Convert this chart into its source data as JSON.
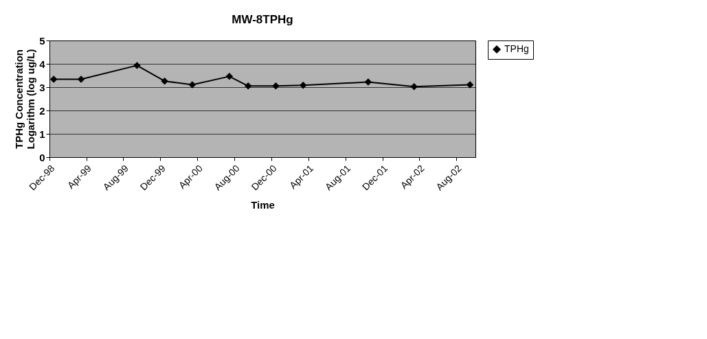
{
  "chart_data": {
    "type": "line",
    "title": "MW-8TPHg",
    "xlabel": "Time",
    "ylabel": "TPHg Concentration\nLogarithm (log ug/L)",
    "x": [
      "1998-12-15",
      "1999-03-15",
      "1999-09-15",
      "1999-12-15",
      "2000-03-15",
      "2000-07-15",
      "2000-09-15",
      "2000-12-15",
      "2001-03-15",
      "2001-10-15",
      "2002-03-15",
      "2002-09-15"
    ],
    "series": [
      {
        "name": "TPHg",
        "color": "#000000",
        "values": [
          3.34,
          3.34,
          3.93,
          3.26,
          3.1,
          3.46,
          3.05,
          3.05,
          3.08,
          3.22,
          3.02,
          3.1
        ]
      }
    ],
    "xlim": [
      "1998-12-01",
      "2002-10-03"
    ],
    "xticks": [
      {
        "value": "1998-12-01",
        "label": "Dec-98"
      },
      {
        "value": "1999-04-01",
        "label": "Apr-99"
      },
      {
        "value": "1999-08-01",
        "label": "Aug-99"
      },
      {
        "value": "1999-12-01",
        "label": "Dec-99"
      },
      {
        "value": "2000-04-01",
        "label": "Apr-00"
      },
      {
        "value": "2000-08-01",
        "label": "Aug-00"
      },
      {
        "value": "2000-12-01",
        "label": "Dec-00"
      },
      {
        "value": "2001-04-01",
        "label": "Apr-01"
      },
      {
        "value": "2001-08-01",
        "label": "Aug-01"
      },
      {
        "value": "2001-12-01",
        "label": "Dec-01"
      },
      {
        "value": "2002-04-01",
        "label": "Apr-02"
      },
      {
        "value": "2002-08-01",
        "label": "Aug-02"
      }
    ],
    "ylim": [
      0,
      5
    ],
    "yticks": [
      0,
      1,
      2,
      3,
      4,
      5
    ],
    "grid": "y",
    "legend": "right",
    "marker": "diamond",
    "line_style": "solid"
  }
}
